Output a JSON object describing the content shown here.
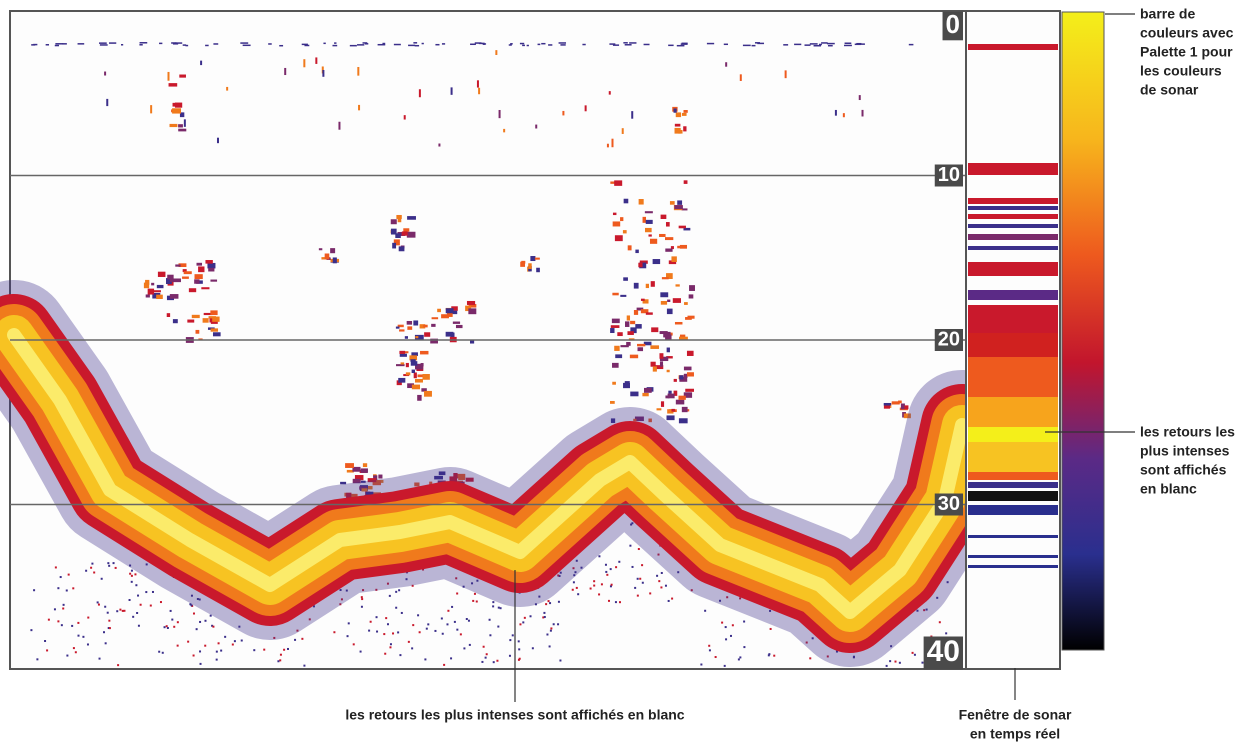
{
  "depth_scale": {
    "range": [
      0,
      40
    ],
    "ticks": [
      0,
      10,
      20,
      30,
      40
    ]
  },
  "annotations": {
    "color_bar": [
      "barre de",
      "couleurs avec",
      "Palette 1 pour",
      "les couleurs",
      "de sonar"
    ],
    "intense_returns_right": [
      "les retours les",
      "plus intenses",
      "sont affichés",
      "en blanc"
    ],
    "intense_returns_bottom": "les retours les plus intenses sont affichés en blanc",
    "realtime_window": [
      "Fenêtre de sonar",
      "en temps réel"
    ]
  }
}
